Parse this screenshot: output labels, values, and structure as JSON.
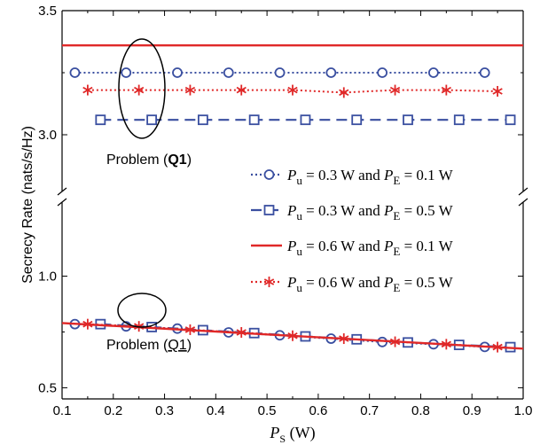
{
  "chart_data": {
    "type": "line",
    "ylabel": "Secrecy Rate (nats/s/Hz)",
    "xlabel": {
      "main": "P",
      "sub": "S",
      "unit": " (W)"
    },
    "x_ticks": [
      "0.1",
      "0.2",
      "0.3",
      "0.4",
      "0.5",
      "0.6",
      "0.7",
      "0.8",
      "0.9",
      "1.0"
    ],
    "xlim": [
      0.1,
      1.0
    ],
    "axis_break": true,
    "upper_panel": {
      "ylim": [
        2.8,
        3.5
      ],
      "y_ticks": [
        "3.0",
        "3.5"
      ],
      "y_tick_values": [
        3.0,
        3.5
      ]
    },
    "lower_panel": {
      "ylim": [
        0.45,
        1.3
      ],
      "y_ticks": [
        "0.5",
        "1.0"
      ],
      "y_tick_values": [
        0.5,
        1.0
      ]
    },
    "series": [
      {
        "legend": {
          "main": "P",
          "sub": "u",
          "text1": " = 0.3 W  and  ",
          "main2": "P",
          "sub2": "E",
          "text2": " = 0.1 W"
        },
        "color": "#3a4fa0",
        "marker": "circle",
        "dash": "dotted",
        "x": [
          0.125,
          0.225,
          0.325,
          0.425,
          0.525,
          0.625,
          0.725,
          0.825,
          0.925
        ],
        "upper": [
          3.25,
          3.25,
          3.25,
          3.25,
          3.25,
          3.25,
          3.25,
          3.25,
          3.25
        ],
        "lower_x": [
          0.125,
          0.225,
          0.325,
          0.425,
          0.525,
          0.625,
          0.725,
          0.825,
          0.925
        ],
        "lower": [
          0.785,
          0.775,
          0.765,
          0.748,
          0.735,
          0.72,
          0.705,
          0.695,
          0.683
        ]
      },
      {
        "legend": {
          "main": "P",
          "sub": "u",
          "text1": " = 0.3 W  and  ",
          "main2": "P",
          "sub2": "E",
          "text2": " = 0.5 W"
        },
        "color": "#3a4fa0",
        "marker": "square",
        "dash": "dashed",
        "x": [
          0.175,
          0.275,
          0.375,
          0.475,
          0.575,
          0.675,
          0.775,
          0.875,
          0.975
        ],
        "upper": [
          3.06,
          3.06,
          3.06,
          3.06,
          3.06,
          3.06,
          3.06,
          3.06,
          3.06
        ],
        "lower_x": [
          0.175,
          0.275,
          0.375,
          0.475,
          0.575,
          0.675,
          0.775,
          0.875,
          0.975
        ],
        "lower": [
          0.785,
          0.772,
          0.758,
          0.745,
          0.73,
          0.717,
          0.703,
          0.692,
          0.682
        ]
      },
      {
        "legend": {
          "main": "P",
          "sub": "u",
          "text1": " = 0.6 W  and  ",
          "main2": "P",
          "sub2": "E",
          "text2": " = 0.1 W"
        },
        "color": "#e02828",
        "marker": "none",
        "dash": "solid",
        "x": [
          0.1,
          1.0
        ],
        "upper": [
          3.36,
          3.36
        ],
        "lower_x": [
          0.1,
          1.0
        ],
        "lower": [
          0.79,
          0.675
        ]
      },
      {
        "legend": {
          "main": "P",
          "sub": "u",
          "text1": " = 0.6 W  and  ",
          "main2": "P",
          "sub2": "E",
          "text2": " = 0.5 W"
        },
        "color": "#e02828",
        "marker": "asterisk",
        "dash": "dotted",
        "x": [
          0.15,
          0.25,
          0.35,
          0.45,
          0.55,
          0.65,
          0.75,
          0.85,
          0.95
        ],
        "upper": [
          3.18,
          3.18,
          3.18,
          3.18,
          3.18,
          3.17,
          3.18,
          3.18,
          3.175
        ],
        "lower_x": [
          0.15,
          0.25,
          0.35,
          0.45,
          0.55,
          0.65,
          0.75,
          0.85,
          0.95
        ],
        "lower": [
          0.785,
          0.775,
          0.76,
          0.748,
          0.733,
          0.72,
          0.706,
          0.695,
          0.682
        ]
      }
    ],
    "annotations": [
      {
        "text_pre": "Problem (",
        "text_label": "Q1",
        "text_post": ")",
        "style": "bold",
        "panel": "upper"
      },
      {
        "text_pre": "Problem (",
        "text_label": "Q1",
        "text_post": ")",
        "style": "underline",
        "panel": "lower"
      }
    ]
  }
}
